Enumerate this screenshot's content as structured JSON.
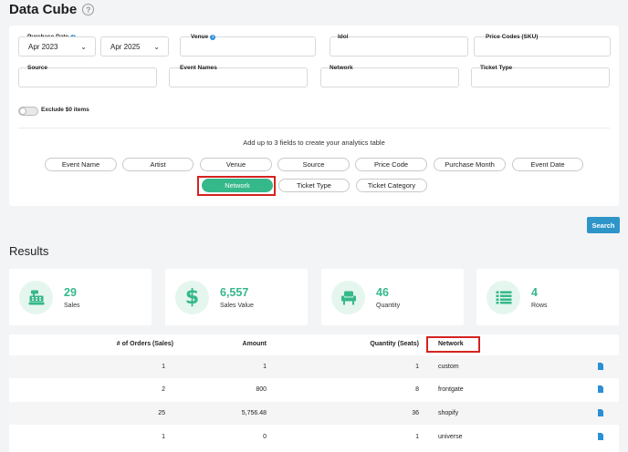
{
  "page": {
    "title": "Data Cube",
    "help": "?"
  },
  "filters": {
    "purchase_date_label": "Purchase Date",
    "purchase_date_info": "i",
    "date_from": "Apr 2023",
    "date_separator": "–",
    "date_to": "Apr 2025",
    "venue_label": "Venue",
    "venue_info": "i",
    "idol_label": "Idol",
    "price_codes_label": "Price Codes (SKU)",
    "source_label": "Source",
    "event_names_label": "Event Names",
    "network_label": "Network",
    "ticket_type_label": "Ticket Type",
    "exclude_zero_label": "Exclude $0 items",
    "exclude_zero_on": false,
    "hint": "Add up to 3 fields to create your analytics table"
  },
  "fields": [
    "Event Name",
    "Artist",
    "Venue",
    "Source",
    "Price Code",
    "Purchase Month",
    "Event Date",
    "Network",
    "Ticket Type",
    "Ticket Category"
  ],
  "active_field": "Network",
  "search_label": "Search",
  "results": {
    "title": "Results",
    "stats": [
      {
        "value": "29",
        "label": "Sales",
        "icon": "cash-register-icon"
      },
      {
        "value": "6,557",
        "label": "Sales Value",
        "icon": "dollar-icon"
      },
      {
        "value": "46",
        "label": "Quantity",
        "icon": "seat-icon"
      },
      {
        "value": "4",
        "label": "Rows",
        "icon": "list-icon"
      }
    ],
    "columns": [
      "# of Orders (Sales)",
      "Amount",
      "Quantity (Seats)",
      "Network"
    ],
    "rows": [
      [
        "1",
        "1",
        "1",
        "custom"
      ],
      [
        "2",
        "800",
        "8",
        "frontgate"
      ],
      [
        "25",
        "5,756.48",
        "36",
        "shopify"
      ],
      [
        "1",
        "0",
        "1",
        "universe"
      ]
    ]
  },
  "colors": {
    "accent": "#35b88a",
    "button": "#2e95c9",
    "highlight": "#d4231f",
    "doc_icon": "#2a8fd6"
  }
}
